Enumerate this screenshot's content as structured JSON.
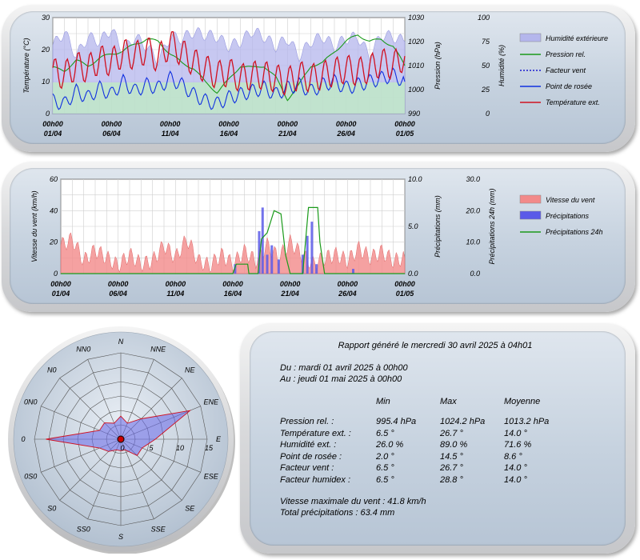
{
  "chart_data": [
    {
      "type": "line",
      "xticks": [
        [
          "00h00",
          "01/04"
        ],
        [
          "00h00",
          "06/04"
        ],
        [
          "00h00",
          "11/04"
        ],
        [
          "00h00",
          "16/04"
        ],
        [
          "00h00",
          "21/04"
        ],
        [
          "00h00",
          "26/04"
        ],
        [
          "00h00",
          "01/05"
        ]
      ],
      "y_left": {
        "label": "Température (°C)",
        "range": [
          0,
          30
        ],
        "ticks": [
          "0",
          "10",
          "20",
          "30"
        ]
      },
      "y_right1": {
        "label": "Pression (hPa)",
        "range": [
          990,
          1030
        ],
        "ticks": [
          "990",
          "1000",
          "1010",
          "1020",
          "1030"
        ]
      },
      "y_right2": {
        "label": "Humidité (%)",
        "range": [
          0,
          100
        ],
        "ticks": [
          "0",
          "25",
          "50",
          "75",
          "100"
        ]
      },
      "series": [
        {
          "name": "Humidité extérieure",
          "color": "#b4b6ec",
          "style": "area"
        },
        {
          "name": "Pression rel.",
          "color": "#1a9a1a",
          "style": "line"
        },
        {
          "name": "Facteur vent",
          "color": "#1a1ad0",
          "style": "dotted"
        },
        {
          "name": "Point de rosée",
          "color": "#1030e0",
          "style": "line"
        },
        {
          "name": "Température ext.",
          "color": "#d01020",
          "style": "line"
        }
      ],
      "pressure_points": [
        [
          0,
          1009
        ],
        [
          1,
          1008
        ],
        [
          2,
          1012
        ],
        [
          3,
          1010
        ],
        [
          4,
          1013
        ],
        [
          5,
          1015
        ],
        [
          6,
          1016
        ],
        [
          7,
          1019
        ],
        [
          8,
          1021
        ],
        [
          9,
          1020
        ],
        [
          10,
          1015
        ],
        [
          11,
          1011
        ],
        [
          12,
          1009
        ],
        [
          13,
          1003
        ],
        [
          14,
          999
        ],
        [
          15,
          1004
        ],
        [
          16,
          1010
        ],
        [
          17,
          1009
        ],
        [
          18,
          1010
        ],
        [
          19,
          1005
        ],
        [
          20,
          996
        ],
        [
          21,
          1002
        ],
        [
          22,
          1010
        ],
        [
          23,
          1011
        ],
        [
          24,
          1016
        ],
        [
          25,
          1020
        ],
        [
          26,
          1023
        ],
        [
          27,
          1020
        ],
        [
          28,
          1021
        ],
        [
          29,
          1018
        ],
        [
          30,
          1010
        ]
      ],
      "humidity_points": [
        [
          0,
          71
        ],
        [
          1,
          85
        ],
        [
          2,
          60
        ],
        [
          3,
          80
        ],
        [
          4,
          75
        ],
        [
          5,
          88
        ],
        [
          6,
          65
        ],
        [
          7,
          80
        ],
        [
          8,
          70
        ],
        [
          9,
          55
        ],
        [
          10,
          80
        ],
        [
          11,
          78
        ],
        [
          12,
          85
        ],
        [
          13,
          82
        ],
        [
          14,
          80
        ],
        [
          15,
          70
        ],
        [
          16,
          75
        ],
        [
          17,
          86
        ],
        [
          18,
          80
        ],
        [
          19,
          70
        ],
        [
          20,
          78
        ],
        [
          21,
          60
        ],
        [
          22,
          75
        ],
        [
          23,
          80
        ],
        [
          24,
          70
        ],
        [
          25,
          78
        ],
        [
          26,
          80
        ],
        [
          27,
          60
        ],
        [
          28,
          82
        ],
        [
          29,
          80
        ],
        [
          30,
          75
        ]
      ],
      "temp_points": [
        [
          0,
          13
        ],
        [
          1,
          12
        ],
        [
          2,
          15
        ],
        [
          3,
          14
        ],
        [
          4,
          17
        ],
        [
          5,
          16
        ],
        [
          6,
          19
        ],
        [
          7,
          18
        ],
        [
          8,
          20
        ],
        [
          9,
          17
        ],
        [
          10,
          22
        ],
        [
          11,
          19
        ],
        [
          12,
          16
        ],
        [
          13,
          14
        ],
        [
          14,
          12
        ],
        [
          15,
          13
        ],
        [
          16,
          11
        ],
        [
          17,
          12
        ],
        [
          18,
          12
        ],
        [
          19,
          11
        ],
        [
          20,
          10
        ],
        [
          21,
          12
        ],
        [
          22,
          11
        ],
        [
          23,
          12
        ],
        [
          24,
          13
        ],
        [
          25,
          14
        ],
        [
          26,
          13
        ],
        [
          27,
          14
        ],
        [
          28,
          16
        ],
        [
          29,
          15
        ],
        [
          30,
          18
        ]
      ],
      "dew_points": [
        [
          0,
          4
        ],
        [
          1,
          3
        ],
        [
          2,
          7
        ],
        [
          3,
          5
        ],
        [
          4,
          8
        ],
        [
          5,
          6
        ],
        [
          6,
          10
        ],
        [
          7,
          7
        ],
        [
          8,
          9
        ],
        [
          9,
          8
        ],
        [
          10,
          11
        ],
        [
          11,
          9
        ],
        [
          12,
          6
        ],
        [
          13,
          4
        ],
        [
          14,
          3
        ],
        [
          15,
          5
        ],
        [
          16,
          6
        ],
        [
          17,
          7
        ],
        [
          18,
          8
        ],
        [
          19,
          6
        ],
        [
          20,
          8
        ],
        [
          21,
          9
        ],
        [
          22,
          7
        ],
        [
          23,
          9
        ],
        [
          24,
          10
        ],
        [
          25,
          8
        ],
        [
          26,
          9
        ],
        [
          27,
          10
        ],
        [
          28,
          11
        ],
        [
          29,
          12
        ],
        [
          30,
          10
        ]
      ],
      "legend_position": "right"
    },
    {
      "type": "line",
      "xticks": [
        [
          "00h00",
          "01/04"
        ],
        [
          "00h00",
          "06/04"
        ],
        [
          "00h00",
          "11/04"
        ],
        [
          "00h00",
          "16/04"
        ],
        [
          "00h00",
          "21/04"
        ],
        [
          "00h00",
          "26/04"
        ],
        [
          "00h00",
          "01/05"
        ]
      ],
      "y_left": {
        "label": "Vitesse du vent (km/h)",
        "range": [
          0,
          60
        ],
        "ticks": [
          "0",
          "20",
          "40",
          "60"
        ]
      },
      "y_right1": {
        "label": "Précipitations (mm)",
        "range": [
          0,
          10
        ],
        "ticks": [
          "0.0",
          "5.0",
          "10.0"
        ]
      },
      "y_right2": {
        "label": "Précipitations 24h (mm)",
        "range": [
          0,
          30
        ],
        "ticks": [
          "0.0",
          "10.0",
          "20.0",
          "30.0"
        ]
      },
      "series": [
        {
          "name": "Vitesse du vent",
          "color": "#f28a8a",
          "style": "area"
        },
        {
          "name": "Précipitations",
          "color": "#5a5ae8",
          "style": "bar"
        },
        {
          "name": "Précipitations 24h",
          "color": "#1a9a1a",
          "style": "line"
        }
      ],
      "wind_points": [
        [
          0,
          18
        ],
        [
          1,
          22
        ],
        [
          2,
          8
        ],
        [
          3,
          15
        ],
        [
          4,
          10
        ],
        [
          5,
          5
        ],
        [
          6,
          12
        ],
        [
          7,
          6
        ],
        [
          8,
          8
        ],
        [
          9,
          18
        ],
        [
          10,
          10
        ],
        [
          11,
          22
        ],
        [
          12,
          8
        ],
        [
          13,
          5
        ],
        [
          14,
          12
        ],
        [
          15,
          6
        ],
        [
          16,
          14
        ],
        [
          17,
          8
        ],
        [
          18,
          18
        ],
        [
          19,
          10
        ],
        [
          20,
          20
        ],
        [
          21,
          12
        ],
        [
          22,
          6
        ],
        [
          23,
          10
        ],
        [
          24,
          12
        ],
        [
          25,
          8
        ],
        [
          26,
          16
        ],
        [
          27,
          10
        ],
        [
          28,
          14
        ],
        [
          29,
          8
        ],
        [
          30,
          10
        ]
      ],
      "rain_points": [
        [
          15.2,
          1.0
        ],
        [
          17.3,
          4.5
        ],
        [
          17.6,
          7.0
        ],
        [
          18.0,
          2.0
        ],
        [
          18.4,
          3.0
        ],
        [
          19.0,
          1.5
        ],
        [
          21.1,
          2.0
        ],
        [
          21.5,
          4.0
        ],
        [
          21.9,
          5.5
        ],
        [
          22.3,
          1.0
        ],
        [
          25.5,
          0.5
        ]
      ],
      "rain24_points": [
        [
          0,
          0
        ],
        [
          15,
          0
        ],
        [
          15.3,
          3
        ],
        [
          16.3,
          3
        ],
        [
          16.4,
          0
        ],
        [
          17.2,
          0
        ],
        [
          17.5,
          11
        ],
        [
          18.0,
          13
        ],
        [
          18.6,
          20
        ],
        [
          19.2,
          19
        ],
        [
          19.6,
          6
        ],
        [
          20.0,
          0
        ],
        [
          21.1,
          0
        ],
        [
          21.6,
          21
        ],
        [
          22.4,
          21
        ],
        [
          22.6,
          10
        ],
        [
          23.0,
          0
        ],
        [
          30,
          0
        ]
      ],
      "legend_position": "right"
    },
    {
      "type": "radar",
      "directions": [
        "N",
        "NNE",
        "NE",
        "ENE",
        "E",
        "ESE",
        "SE",
        "SSE",
        "S",
        "SS0",
        "S0",
        "0S0",
        "0",
        "0N0",
        "N0",
        "NN0"
      ],
      "rings": [
        "0",
        "5",
        "10",
        "15"
      ],
      "max": 15,
      "values": [
        4,
        3,
        5,
        13,
        6,
        4,
        4,
        2,
        2,
        2,
        3,
        4,
        13,
        4,
        4,
        3
      ],
      "fill": "#6868e8",
      "stroke": "#d01020"
    }
  ],
  "report": {
    "title": "Rapport généré le mercredi 30 avril 2025 à 04h01",
    "period_from": "Du : mardi 01 avril 2025 à 00h00",
    "period_to": "Au : jeudi 01 mai 2025 à 00h00",
    "headers": [
      "Min",
      "Max",
      "Moyenne"
    ],
    "rows": [
      {
        "label": "Pression rel. :",
        "min": "995.4 hPa",
        "max": "1024.2 hPa",
        "avg": "1013.2 hPa"
      },
      {
        "label": "Température ext. :",
        "min": "6.5 °",
        "max": "26.7 °",
        "avg": "14.0 °"
      },
      {
        "label": "Humidité ext. :",
        "min": "26.0 %",
        "max": "89.0 %",
        "avg": "71.6 %"
      },
      {
        "label": "Point de rosée :",
        "min": "2.0 °",
        "max": "14.5 °",
        "avg": "8.6 °"
      },
      {
        "label": "Facteur vent :",
        "min": "6.5 °",
        "max": "26.7 °",
        "avg": "14.0 °"
      },
      {
        "label": "Facteur humidex :",
        "min": "6.5 °",
        "max": "28.8 °",
        "avg": "14.0 °"
      }
    ],
    "wind_max": "Vitesse maximale du vent : 41.8 km/h",
    "rain_total": "Total précipitations : 63.4 mm"
  }
}
